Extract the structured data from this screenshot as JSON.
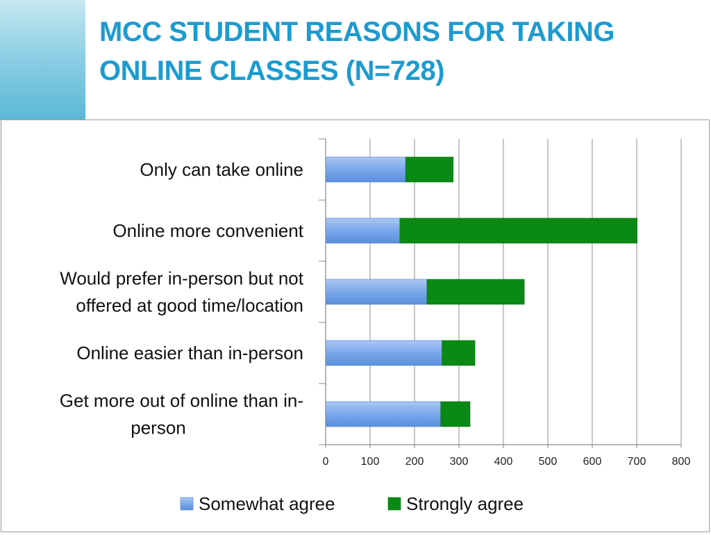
{
  "slide": {
    "title_line1": "MCC STUDENT REASONS FOR TAKING",
    "title_line2": "ONLINE CLASSES (N=728)"
  },
  "colors": {
    "title": "#1c9bd0",
    "somewhat_agree": "#6f9fe6",
    "strongly_agree": "#0a8a14",
    "accent": "#5bb8d8"
  },
  "chart_data": {
    "type": "bar",
    "orientation": "horizontal",
    "stacked": true,
    "categories": [
      [
        "Only can take online"
      ],
      [
        "Online more convenient"
      ],
      [
        "Would prefer in-person but not",
        "offered at good time/location"
      ],
      [
        "Online easier than in-person"
      ],
      [
        "Get more out of online than in-",
        "person"
      ]
    ],
    "series": [
      {
        "name": "Somewhat agree",
        "values": [
          180,
          167,
          228,
          262,
          259
        ]
      },
      {
        "name": "Strongly agree",
        "values": [
          107,
          534,
          219,
          74,
          66
        ]
      }
    ],
    "xlim": [
      0,
      800
    ],
    "xticks": [
      "0",
      "100",
      "200",
      "300",
      "400",
      "500",
      "600",
      "700",
      "800"
    ],
    "grid": true,
    "legend_position": "bottom"
  }
}
